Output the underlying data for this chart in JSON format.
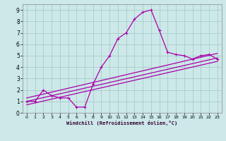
{
  "background_color": "#cce8e8",
  "grid_color": "#aacccc",
  "line_color": "#aa00aa",
  "xlabel": "Windchill (Refroidissement éolien,°C)",
  "xlim": [
    -0.5,
    23.5
  ],
  "ylim": [
    0,
    9.5
  ],
  "xticks": [
    0,
    1,
    2,
    3,
    4,
    5,
    6,
    7,
    8,
    9,
    10,
    11,
    12,
    13,
    14,
    15,
    16,
    17,
    18,
    19,
    20,
    21,
    22,
    23
  ],
  "yticks": [
    0,
    1,
    2,
    3,
    4,
    5,
    6,
    7,
    8,
    9
  ],
  "curve1_x": [
    0,
    1,
    2,
    3,
    4,
    5,
    6,
    7,
    8,
    9,
    10,
    11,
    12,
    13,
    14,
    15,
    16,
    17,
    18,
    19,
    20,
    21,
    22,
    23
  ],
  "curve1_y": [
    1.0,
    1.0,
    2.0,
    1.5,
    1.3,
    1.3,
    0.5,
    0.5,
    2.5,
    4.0,
    5.0,
    6.5,
    7.0,
    8.2,
    8.8,
    9.0,
    7.2,
    5.3,
    5.1,
    5.0,
    4.7,
    5.0,
    5.1,
    4.7
  ],
  "curve2_x": [
    0,
    23
  ],
  "curve2_y": [
    1.0,
    4.8
  ],
  "curve3_x": [
    0,
    23
  ],
  "curve3_y": [
    0.7,
    4.5
  ],
  "curve4_x": [
    0,
    23
  ],
  "curve4_y": [
    1.3,
    5.2
  ],
  "figsize": [
    3.2,
    2.0
  ],
  "dpi": 100
}
